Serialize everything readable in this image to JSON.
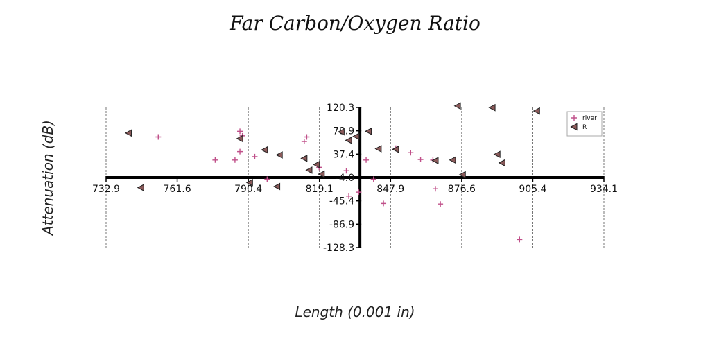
{
  "chart_data": {
    "type": "scatter",
    "title": "Far Carbon/Oxygen Ratio",
    "xlabel": "Length (0.001 in)",
    "ylabel": "Attenuation (dB)",
    "xlim": [
      732.9,
      934.1
    ],
    "ylim": [
      -128.3,
      120.3
    ],
    "x_ticks": [
      "732.9",
      "761.6",
      "790.4",
      "819.1",
      "847.9",
      "876.6",
      "905.4",
      "934.1"
    ],
    "y_ticks": [
      "120.3",
      "78.9",
      "37.4",
      "-4.0",
      "-45.4",
      "-86.9",
      "-128.3"
    ],
    "grid": "vertical dashed",
    "legend": "top-right",
    "colors": {
      "river": "#c0508a",
      "R": "#8b5a5a"
    },
    "series": [
      {
        "name": "river",
        "marker": "plus",
        "points": [
          [
            754,
            68
          ],
          [
            777,
            27
          ],
          [
            785,
            27
          ],
          [
            787,
            78
          ],
          [
            787,
            42
          ],
          [
            788,
            70
          ],
          [
            793,
            33
          ],
          [
            798,
            -7
          ],
          [
            813,
            60
          ],
          [
            814,
            68
          ],
          [
            819,
            14
          ],
          [
            830,
            8
          ],
          [
            831,
            -37
          ],
          [
            835,
            -30
          ],
          [
            838,
            27
          ],
          [
            841,
            -7
          ],
          [
            845,
            -50
          ],
          [
            850,
            48
          ],
          [
            856,
            40
          ],
          [
            860,
            28
          ],
          [
            865,
            27
          ],
          [
            866,
            -24
          ],
          [
            868,
            -51
          ],
          [
            900,
            -114
          ]
        ]
      },
      {
        "name": "R",
        "marker": "triangle-left",
        "points": [
          [
            742,
            75
          ],
          [
            747,
            -22
          ],
          [
            787,
            65
          ],
          [
            791,
            -13
          ],
          [
            797,
            45
          ],
          [
            802,
            -20
          ],
          [
            803,
            36
          ],
          [
            813,
            30
          ],
          [
            815,
            9
          ],
          [
            818,
            19
          ],
          [
            820,
            2
          ],
          [
            828,
            77
          ],
          [
            831,
            62
          ],
          [
            834,
            69
          ],
          [
            839,
            78
          ],
          [
            843,
            47
          ],
          [
            850,
            46
          ],
          [
            866,
            26
          ],
          [
            873,
            27
          ],
          [
            875,
            123
          ],
          [
            877,
            1
          ],
          [
            889,
            120
          ],
          [
            891,
            37
          ],
          [
            893,
            22
          ],
          [
            907,
            114
          ]
        ]
      }
    ]
  }
}
